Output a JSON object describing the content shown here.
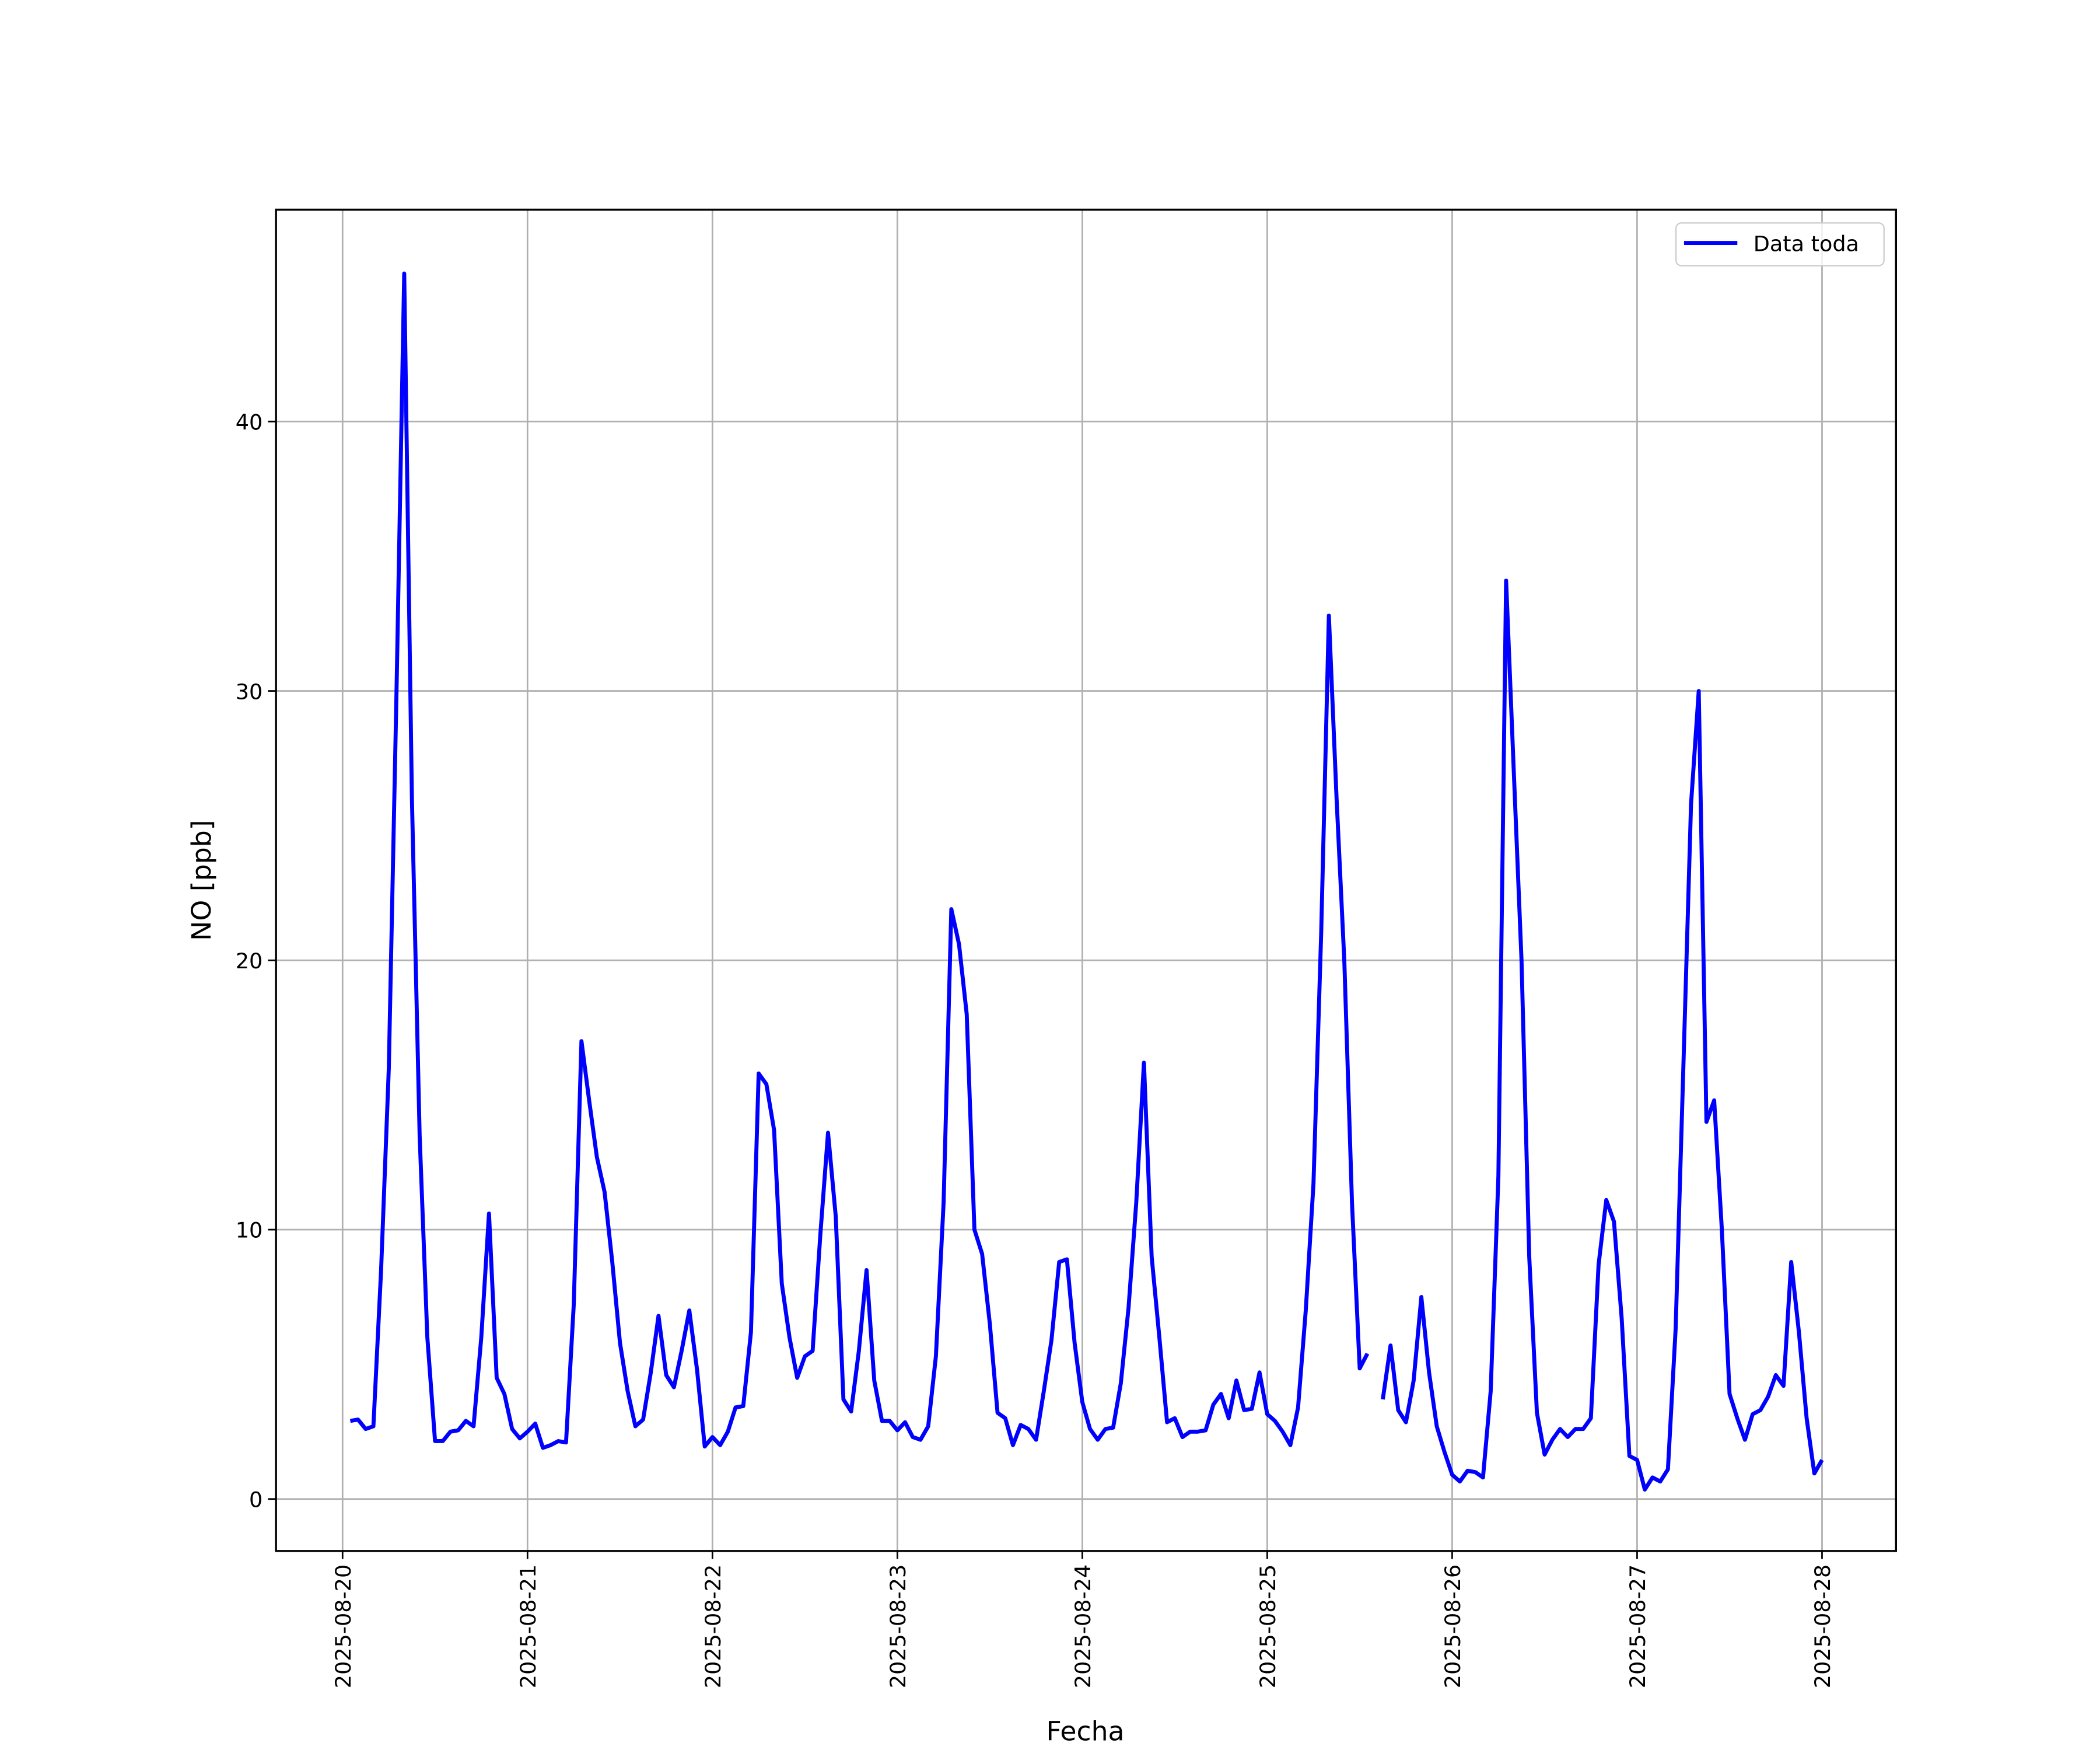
{
  "chart_data": {
    "type": "line",
    "xlabel": "Fecha",
    "ylabel": "NO [ppb]",
    "xlim": [
      -0.36,
      8.4
    ],
    "ylim": [
      -1.93,
      47.87
    ],
    "xticks": [
      {
        "value": 0,
        "label": "2025-08-20"
      },
      {
        "value": 1,
        "label": "2025-08-21"
      },
      {
        "value": 2,
        "label": "2025-08-22"
      },
      {
        "value": 3,
        "label": "2025-08-23"
      },
      {
        "value": 4,
        "label": "2025-08-24"
      },
      {
        "value": 5,
        "label": "2025-08-25"
      },
      {
        "value": 6,
        "label": "2025-08-26"
      },
      {
        "value": 7,
        "label": "2025-08-27"
      },
      {
        "value": 8,
        "label": "2025-08-28"
      }
    ],
    "yticks": [
      0,
      10,
      20,
      30,
      40
    ],
    "grid": true,
    "legend": "upper right",
    "x": [
      0.0417,
      0.0833,
      0.125,
      0.1667,
      0.2083,
      0.25,
      0.2917,
      0.3333,
      0.375,
      0.4167,
      0.4583,
      0.5,
      0.5417,
      0.5833,
      0.625,
      0.6667,
      0.7083,
      0.75,
      0.7917,
      0.8333,
      0.875,
      0.9167,
      0.9583,
      1,
      1.0417,
      1.0833,
      1.125,
      1.1667,
      1.2083,
      1.25,
      1.2917,
      1.3333,
      1.375,
      1.4167,
      1.4583,
      1.5,
      1.5417,
      1.5833,
      1.625,
      1.6667,
      1.7083,
      1.75,
      1.7917,
      1.8333,
      1.875,
      1.9167,
      1.9583,
      2,
      2.0417,
      2.0833,
      2.125,
      2.1667,
      2.2083,
      2.25,
      2.2917,
      2.3333,
      2.375,
      2.4167,
      2.4583,
      2.5,
      2.5417,
      2.5833,
      2.625,
      2.6667,
      2.7083,
      2.75,
      2.7917,
      2.8333,
      2.875,
      2.9167,
      2.9583,
      3,
      3.0417,
      3.0833,
      3.125,
      3.1667,
      3.2083,
      3.25,
      3.2917,
      3.3333,
      3.375,
      3.4167,
      3.4583,
      3.5,
      3.5417,
      3.5833,
      3.625,
      3.6667,
      3.7083,
      3.75,
      3.7917,
      3.8333,
      3.875,
      3.9167,
      3.9583,
      4,
      4.0417,
      4.0833,
      4.125,
      4.1667,
      4.2083,
      4.25,
      4.2917,
      4.3333,
      4.375,
      4.4167,
      4.4583,
      4.5,
      4.5417,
      4.5833,
      4.625,
      4.6667,
      4.7083,
      4.75,
      4.7917,
      4.8333,
      4.875,
      4.9167,
      4.9583,
      5,
      5.0417,
      5.0833,
      5.125,
      5.1667,
      5.2083,
      5.25,
      5.2917,
      5.3333,
      5.375,
      5.4167,
      5.4583,
      5.5,
      5.5417,
      5.5833,
      5.625,
      5.6667,
      5.7083,
      5.75,
      5.7917,
      5.8333,
      5.875,
      5.9167,
      5.9583,
      6,
      6.0417,
      6.0833,
      6.125,
      6.1667,
      6.2083,
      6.25,
      6.2917,
      6.3333,
      6.375,
      6.4167,
      6.4583,
      6.5,
      6.5417,
      6.5833,
      6.625,
      6.6667,
      6.7083,
      6.75,
      6.7917,
      6.8333,
      6.875,
      6.9167,
      6.9583,
      7,
      7.0417,
      7.0833,
      7.125,
      7.1667,
      7.2083,
      7.25,
      7.2917,
      7.3333,
      7.375,
      7.4167,
      7.4583,
      7.5,
      7.5417,
      7.5833,
      7.625,
      7.6667,
      7.7083,
      7.75,
      7.7917,
      7.8333,
      7.875,
      7.9167,
      7.9583,
      8
    ],
    "series": [
      {
        "name": "Data toda",
        "color": "#0000ff",
        "values": [
          2.9,
          2.95,
          2.6,
          2.7,
          8.5,
          16,
          30,
          45.5,
          26,
          13.5,
          6,
          2.15,
          2.15,
          2.5,
          2.55,
          2.9,
          2.7,
          6,
          10.6,
          4.5,
          3.9,
          2.6,
          2.25,
          2.5,
          2.8,
          1.9,
          2.0,
          2.15,
          2.1,
          7.2,
          17,
          14.8,
          12.7,
          11.4,
          8.8,
          5.8,
          4,
          2.7,
          2.95,
          4.7,
          6.8,
          4.6,
          4.15,
          5.5,
          7,
          4.8,
          1.95,
          2.3,
          2.0,
          2.5,
          3.4,
          3.45,
          6.2,
          15.8,
          15.4,
          13.7,
          8,
          6,
          4.5,
          5.3,
          5.5,
          9.8,
          13.6,
          10.5,
          3.7,
          3.25,
          5.5,
          8.5,
          4.4,
          2.9,
          2.9,
          2.55,
          2.85,
          2.3,
          2.2,
          2.7,
          5.3,
          11,
          21.9,
          20.6,
          18,
          10,
          9.1,
          6.5,
          3.2,
          3,
          2,
          2.75,
          2.6,
          2.2,
          4,
          5.9,
          8.8,
          8.9,
          5.8,
          3.6,
          2.6,
          2.2,
          2.6,
          2.65,
          4.3,
          7.1,
          11,
          16.2,
          9,
          6,
          2.85,
          3.0,
          2.3,
          2.5,
          2.5,
          2.55,
          3.5,
          3.9,
          3.0,
          4.4,
          3.3,
          3.35,
          4.7,
          3.15,
          2.9,
          2.5,
          2.0,
          3.4,
          7,
          11.7,
          21,
          32.8,
          26,
          20,
          11,
          4.85,
          5.4,
          null,
          3.7,
          5.7,
          3.3,
          2.85,
          4.4,
          7.5,
          4.7,
          2.7,
          1.75,
          0.9,
          0.65,
          1.05,
          1.0,
          0.8,
          4,
          12,
          34.1,
          27,
          20,
          9,
          3.2,
          1.65,
          2.2,
          2.6,
          2.3,
          2.6,
          2.6,
          3,
          8.7,
          11.1,
          10.3,
          6.7,
          1.6,
          1.45,
          0.35,
          0.8,
          0.65,
          1.1,
          6.3,
          16,
          25.8,
          30,
          14,
          14.8,
          10,
          3.9,
          3,
          2.2,
          3.15,
          3.3,
          3.8,
          4.6,
          4.2,
          8.8,
          6.2,
          3,
          0.95,
          1.45
        ]
      }
    ]
  }
}
